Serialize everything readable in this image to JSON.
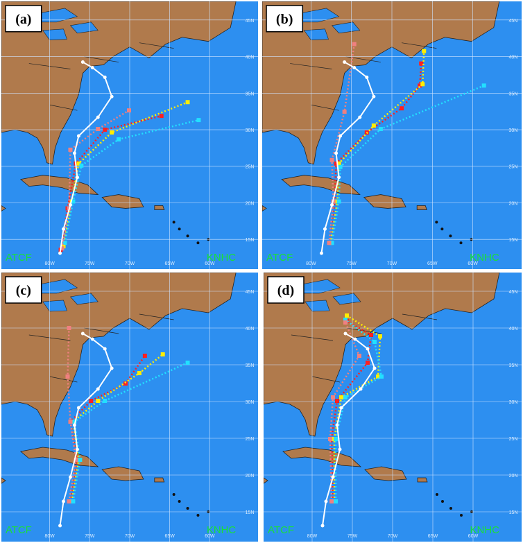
{
  "panels": [
    {
      "label": "(a)",
      "source_left": "ATCF",
      "source_right": "KNHC",
      "lat_labels": [
        "45N",
        "40N",
        "35N",
        "30N",
        "25N",
        "20N",
        "15N"
      ],
      "lon_labels": [
        "80W",
        "75W",
        "70W",
        "65W",
        "60W"
      ]
    },
    {
      "label": "(b)",
      "source_left": "ATCF",
      "source_right": "KNHC",
      "lat_labels": [
        "45N",
        "40N",
        "35N",
        "30N",
        "25N",
        "20N",
        "15N"
      ],
      "lon_labels": [
        "80W",
        "75W",
        "70W",
        "65W",
        "60W"
      ]
    },
    {
      "label": "(c)",
      "source_left": "ATCF",
      "source_right": "KNHC",
      "lat_labels": [
        "45N",
        "40N",
        "35N",
        "30N",
        "25N",
        "20N",
        "15N"
      ],
      "lon_labels": [
        "80W",
        "75W",
        "70W",
        "65W",
        "60W"
      ]
    },
    {
      "label": "(d)",
      "source_left": "ATCF",
      "source_right": "KNHC",
      "lat_labels": [
        "45N",
        "40N",
        "35N",
        "30N",
        "25N",
        "20N",
        "15N"
      ],
      "lon_labels": [
        "80W",
        "75W",
        "70W",
        "65W",
        "60W"
      ]
    }
  ]
}
